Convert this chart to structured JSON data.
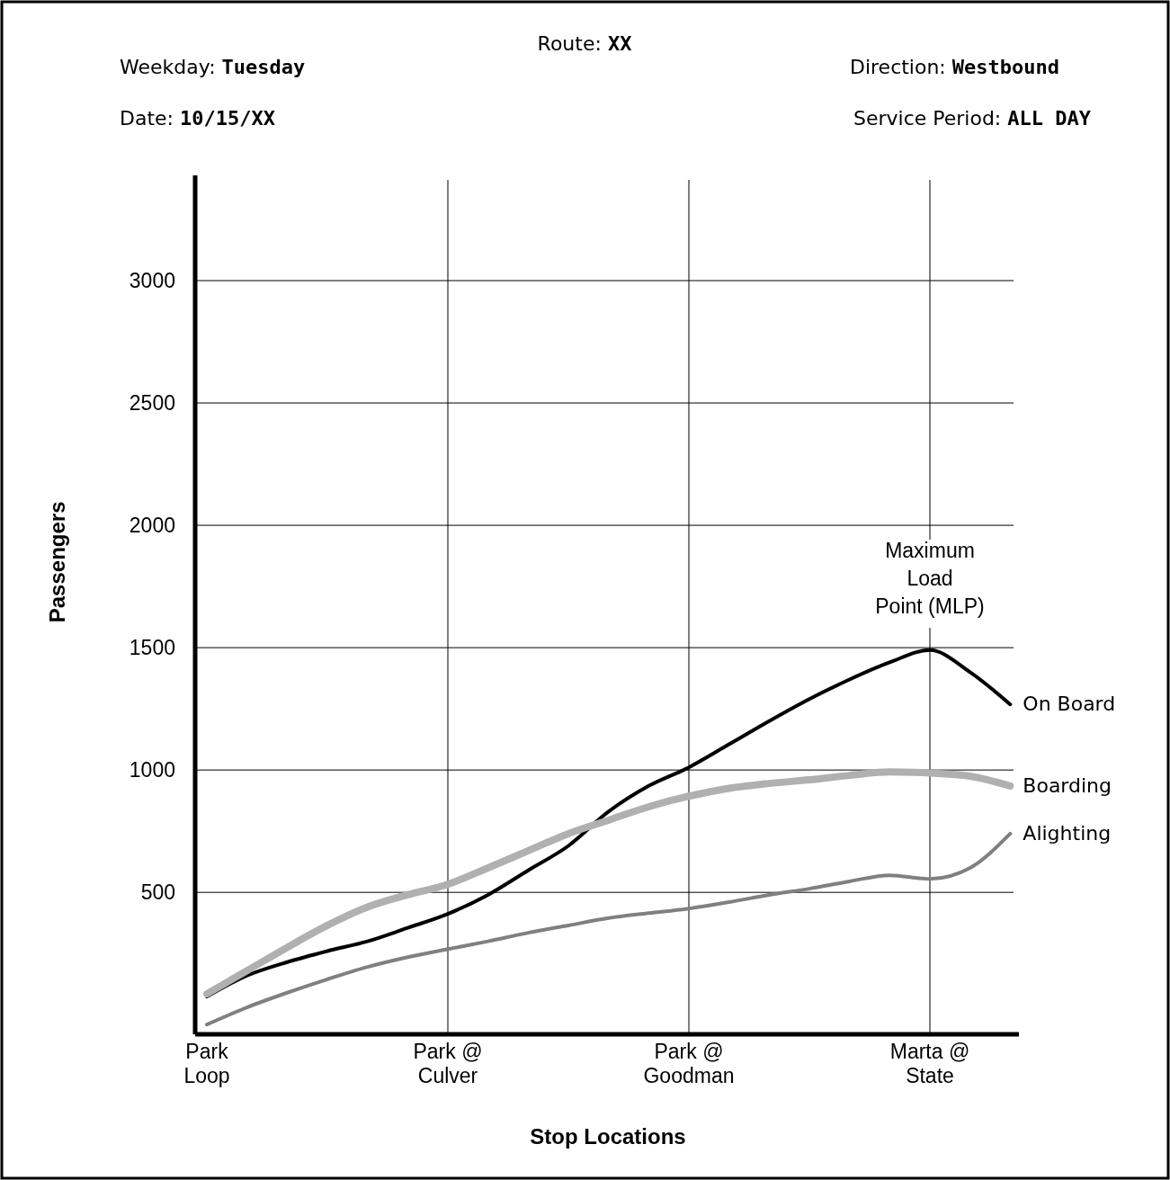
{
  "chart_data": {
    "type": "line",
    "title": "Route: XX",
    "xlabel": "Stop Locations",
    "ylabel": "Passengers",
    "annotations": [
      "Weekday: Tuesday",
      "Date: 10/15/XX",
      "Direction: Westbound",
      "Service Period: ALL DAY",
      {
        "text": "Maximum Load Point (MLP)",
        "x": "Marta @\nState",
        "y": 1500
      }
    ],
    "categories": [
      "Park\nLoop",
      null,
      null,
      null,
      null,
      null,
      "Park @\nCulver",
      null,
      null,
      null,
      null,
      null,
      "Park @\nGoodman",
      null,
      null,
      null,
      null,
      null,
      "Marta @\nState",
      null,
      null
    ],
    "ylim": [
      -80,
      3430
    ],
    "yticks": [
      500,
      1000,
      1500,
      2000,
      2500,
      3000
    ],
    "grid": true,
    "series": [
      {
        "name": "On Board",
        "color": "#000000",
        "values": [
          74,
          160,
          215,
          260,
          300,
          355,
          412,
          490,
          590,
          690,
          830,
          935,
          1011,
          1105,
          1200,
          1290,
          1370,
          1440,
          1490,
          1400,
          1268
        ]
      },
      {
        "name": "Boarding",
        "color": "#b0b0b0",
        "values": [
          85,
          180,
          275,
          365,
          440,
          490,
          533,
          600,
          670,
          740,
          795,
          850,
          893,
          925,
          945,
          960,
          978,
          992,
          988,
          975,
          935
        ]
      },
      {
        "name": "Alighting",
        "color": "#808080",
        "values": [
          -40,
          30,
          90,
          145,
          195,
          235,
          268,
          300,
          335,
          365,
          395,
          415,
          434,
          460,
          490,
          515,
          545,
          570,
          555,
          600,
          740
        ]
      }
    ]
  }
}
